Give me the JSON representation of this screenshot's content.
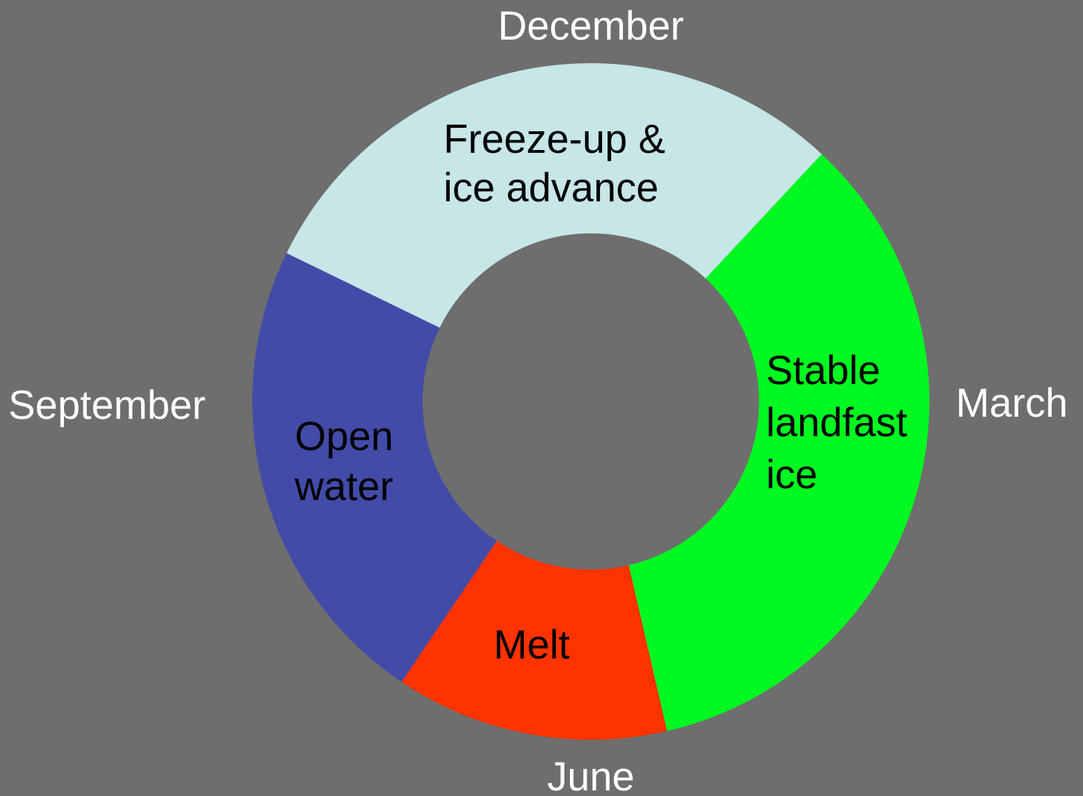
{
  "months": {
    "top": "December",
    "right": "March",
    "bottom": "June",
    "left": "September"
  },
  "segments": [
    {
      "lines": [
        "Freeze-up &",
        "ice advance"
      ]
    },
    {
      "lines": [
        "Stable",
        "landfast",
        "ice"
      ]
    },
    {
      "lines": [
        "Melt"
      ]
    },
    {
      "lines": [
        "Open",
        "water"
      ]
    }
  ]
}
